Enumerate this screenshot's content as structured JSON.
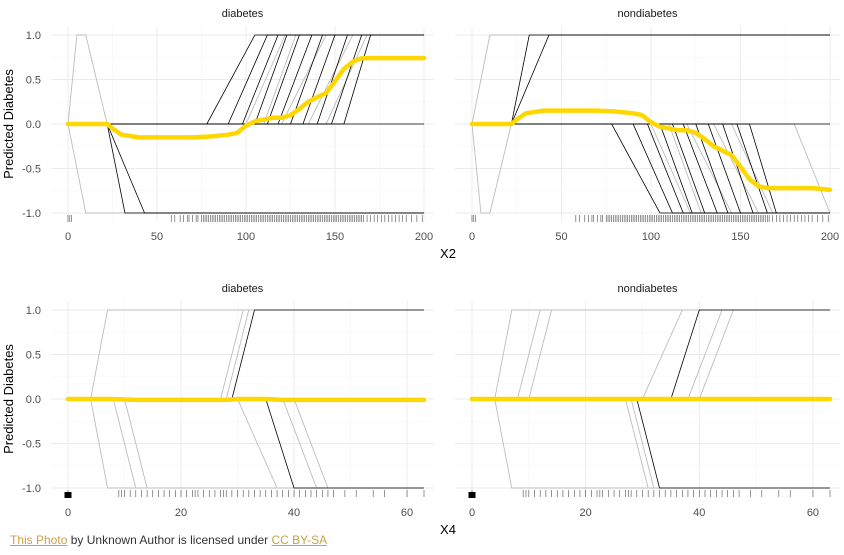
{
  "colors": {
    "pdp": "#ffd700",
    "ice_dark": "#000000",
    "ice_light": "#bdbdbd",
    "rug": "#000000"
  },
  "caption": {
    "photo_link": "This Photo",
    "middle": "by Unknown Author is licensed under",
    "license_link": "CC BY-SA"
  },
  "chart_data": [
    {
      "type": "line",
      "variable": "X2",
      "xlabel": "X2",
      "ylabel": "Predicted Diabetes",
      "xlim": [
        0,
        200
      ],
      "ylim": [
        -1,
        1
      ],
      "x_ticks": [
        0,
        50,
        100,
        150,
        200
      ],
      "y_ticks": [
        -1.0,
        -0.5,
        0.0,
        0.5,
        1.0
      ],
      "y_tick_labels": [
        "-1.0",
        "-0.5",
        "0.0",
        "0.5",
        "1.0"
      ],
      "facets": [
        {
          "label": "diabetes",
          "pdp": {
            "x": [
              0,
              22,
              25,
              30,
              40,
              50,
              60,
              70,
              80,
              90,
              95,
              100,
              105,
              110,
              115,
              120,
              125,
              130,
              135,
              140,
              145,
              150,
              155,
              160,
              165,
              170,
              180,
              190,
              200
            ],
            "y": [
              0,
              0,
              -0.05,
              -0.12,
              -0.15,
              -0.15,
              -0.15,
              -0.15,
              -0.14,
              -0.12,
              -0.1,
              -0.02,
              0.03,
              0.05,
              0.07,
              0.07,
              0.1,
              0.17,
              0.25,
              0.3,
              0.35,
              0.48,
              0.62,
              0.7,
              0.74,
              0.74,
              0.74,
              0.74,
              0.74
            ]
          },
          "ice_up_dark": [
            [
              78,
              105
            ],
            [
              90,
              112
            ],
            [
              98,
              118
            ],
            [
              105,
              123
            ],
            [
              112,
              130
            ],
            [
              118,
              137
            ],
            [
              125,
              143
            ],
            [
              132,
              150
            ],
            [
              140,
              157
            ],
            [
              148,
              165
            ],
            [
              155,
              170
            ]
          ],
          "ice_up_light": [
            [
              100,
              122
            ],
            [
              110,
              128
            ],
            [
              120,
              145
            ],
            [
              135,
              160
            ],
            [
              145,
              168
            ]
          ],
          "ice_down_dark": [
            [
              22,
              32
            ],
            [
              22,
              43
            ]
          ],
          "ice_down_light": [
            [
              0,
              10
            ]
          ],
          "ice_bump_light": [
            [
              10,
              22
            ]
          ],
          "flat_zero_until": 200,
          "rug": [
            0,
            1,
            2,
            58,
            60,
            63,
            65,
            67,
            68,
            70,
            72,
            73,
            75,
            76,
            77,
            78,
            79,
            80,
            81,
            82,
            83,
            84,
            85,
            86,
            87,
            88,
            89,
            90,
            91,
            92,
            93,
            94,
            95,
            96,
            97,
            98,
            99,
            100,
            101,
            102,
            103,
            104,
            105,
            106,
            107,
            108,
            109,
            110,
            111,
            112,
            113,
            114,
            115,
            116,
            117,
            118,
            119,
            120,
            121,
            122,
            123,
            124,
            125,
            126,
            127,
            128,
            129,
            130,
            131,
            132,
            133,
            134,
            135,
            136,
            137,
            138,
            139,
            140,
            141,
            142,
            143,
            144,
            145,
            146,
            147,
            148,
            149,
            150,
            151,
            152,
            153,
            154,
            155,
            156,
            157,
            158,
            159,
            160,
            161,
            162,
            163,
            164,
            165,
            166,
            168,
            170,
            172,
            174,
            176,
            178,
            180,
            182,
            184,
            186,
            188,
            190,
            193,
            196,
            199
          ]
        },
        {
          "label": "nondiabetes",
          "pdp": {
            "x": [
              0,
              22,
              25,
              30,
              40,
              50,
              60,
              70,
              80,
              90,
              95,
              100,
              105,
              110,
              115,
              120,
              125,
              130,
              135,
              140,
              145,
              150,
              155,
              160,
              165,
              170,
              180,
              190,
              200
            ],
            "y": [
              0,
              0,
              0.05,
              0.12,
              0.15,
              0.15,
              0.15,
              0.15,
              0.14,
              0.12,
              0.1,
              0.02,
              -0.03,
              -0.05,
              -0.07,
              -0.07,
              -0.1,
              -0.17,
              -0.25,
              -0.3,
              -0.35,
              -0.48,
              -0.62,
              -0.7,
              -0.72,
              -0.72,
              -0.72,
              -0.72,
              -0.74
            ]
          },
          "ice_down_dark": [
            [
              78,
              105
            ],
            [
              90,
              112
            ],
            [
              98,
              118
            ],
            [
              105,
              123
            ],
            [
              112,
              130
            ],
            [
              118,
              137
            ],
            [
              125,
              143
            ],
            [
              132,
              150
            ],
            [
              140,
              157
            ],
            [
              148,
              165
            ],
            [
              155,
              170
            ]
          ],
          "ice_down_light": [
            [
              100,
              122
            ],
            [
              110,
              128
            ],
            [
              120,
              145
            ],
            [
              135,
              160
            ],
            [
              145,
              168
            ],
            [
              180,
              200
            ]
          ],
          "ice_up_dark": [
            [
              22,
              32
            ],
            [
              22,
              43
            ]
          ],
          "ice_up_light": [
            [
              0,
              10
            ]
          ],
          "ice_bump_light": [
            [
              10,
              22
            ]
          ],
          "flat_zero_until": 200,
          "rug": [
            0,
            1,
            2,
            58,
            60,
            63,
            65,
            67,
            68,
            70,
            72,
            73,
            75,
            76,
            77,
            78,
            79,
            80,
            81,
            82,
            83,
            84,
            85,
            86,
            87,
            88,
            89,
            90,
            91,
            92,
            93,
            94,
            95,
            96,
            97,
            98,
            99,
            100,
            101,
            102,
            103,
            104,
            105,
            106,
            107,
            108,
            109,
            110,
            111,
            112,
            113,
            114,
            115,
            116,
            117,
            118,
            119,
            120,
            121,
            122,
            123,
            124,
            125,
            126,
            127,
            128,
            129,
            130,
            131,
            132,
            133,
            134,
            135,
            136,
            137,
            138,
            139,
            140,
            141,
            142,
            143,
            144,
            145,
            146,
            147,
            148,
            149,
            150,
            151,
            152,
            153,
            154,
            155,
            156,
            157,
            158,
            159,
            160,
            161,
            162,
            163,
            164,
            165,
            166,
            168,
            170,
            172,
            174,
            176,
            178,
            180,
            182,
            184,
            186,
            188,
            190,
            193,
            196,
            199
          ]
        }
      ]
    },
    {
      "type": "line",
      "variable": "X4",
      "xlabel": "X4",
      "ylabel": "Predicted Diabetes",
      "xlim": [
        0,
        63
      ],
      "ylim": [
        -1,
        1
      ],
      "x_ticks": [
        0,
        20,
        40,
        60
      ],
      "y_ticks": [
        -1.0,
        -0.5,
        0.0,
        0.5,
        1.0
      ],
      "y_tick_labels": [
        "-1.0",
        "-0.5",
        "0.0",
        "0.5",
        "1.0"
      ],
      "facets": [
        {
          "label": "diabetes",
          "pdp": {
            "x": [
              0,
              8,
              12,
              20,
              28,
              30,
              35,
              38,
              40,
              50,
              63
            ],
            "y": [
              0,
              0,
              -0.01,
              -0.01,
              -0.01,
              0,
              0,
              -0.01,
              -0.01,
              -0.01,
              -0.01
            ]
          },
          "ice_up_dark": [
            [
              29,
              33
            ]
          ],
          "ice_up_light": [
            [
              4,
              7
            ],
            [
              27,
              31
            ],
            [
              28,
              32
            ]
          ],
          "ice_down_dark": [
            [
              35,
              40
            ]
          ],
          "ice_down_light": [
            [
              4,
              7
            ],
            [
              8,
              12
            ],
            [
              10,
              14
            ],
            [
              30,
              37
            ],
            [
              38,
              44
            ],
            [
              40,
              46
            ]
          ],
          "ice_bump_light": [],
          "flat_zero_until": 63,
          "rug": [
            0,
            9,
            9.5,
            10,
            11,
            12,
            13,
            14,
            15,
            16,
            17,
            18,
            19,
            20,
            21,
            22,
            22.5,
            23,
            24,
            25,
            26,
            27,
            27.5,
            28,
            29,
            30,
            31,
            32,
            33,
            34,
            35,
            36,
            37,
            38,
            39,
            40,
            41,
            42,
            43,
            44,
            45,
            46,
            47,
            49,
            51,
            54,
            56,
            60,
            63
          ]
        },
        {
          "label": "nondiabetes",
          "pdp": {
            "x": [
              0,
              20,
              40,
              63
            ],
            "y": [
              0,
              0,
              0,
              0
            ]
          },
          "ice_up_dark": [
            [
              35,
              40
            ]
          ],
          "ice_up_light": [
            [
              4,
              7
            ],
            [
              8,
              12
            ],
            [
              10,
              14
            ],
            [
              30,
              37
            ],
            [
              38,
              44
            ],
            [
              40,
              46
            ]
          ],
          "ice_down_dark": [
            [
              29,
              33
            ]
          ],
          "ice_down_light": [
            [
              4,
              7
            ],
            [
              27,
              31
            ],
            [
              28,
              32
            ]
          ],
          "ice_bump_light": [],
          "flat_zero_until": 63,
          "rug": [
            0,
            9,
            9.5,
            10,
            11,
            12,
            13,
            14,
            15,
            16,
            17,
            18,
            19,
            20,
            21,
            22,
            22.5,
            23,
            24,
            25,
            26,
            27,
            27.5,
            28,
            29,
            30,
            31,
            32,
            33,
            34,
            35,
            36,
            37,
            38,
            39,
            40,
            41,
            42,
            43,
            44,
            45,
            46,
            47,
            49,
            51,
            54,
            56,
            60,
            63
          ]
        }
      ]
    }
  ]
}
